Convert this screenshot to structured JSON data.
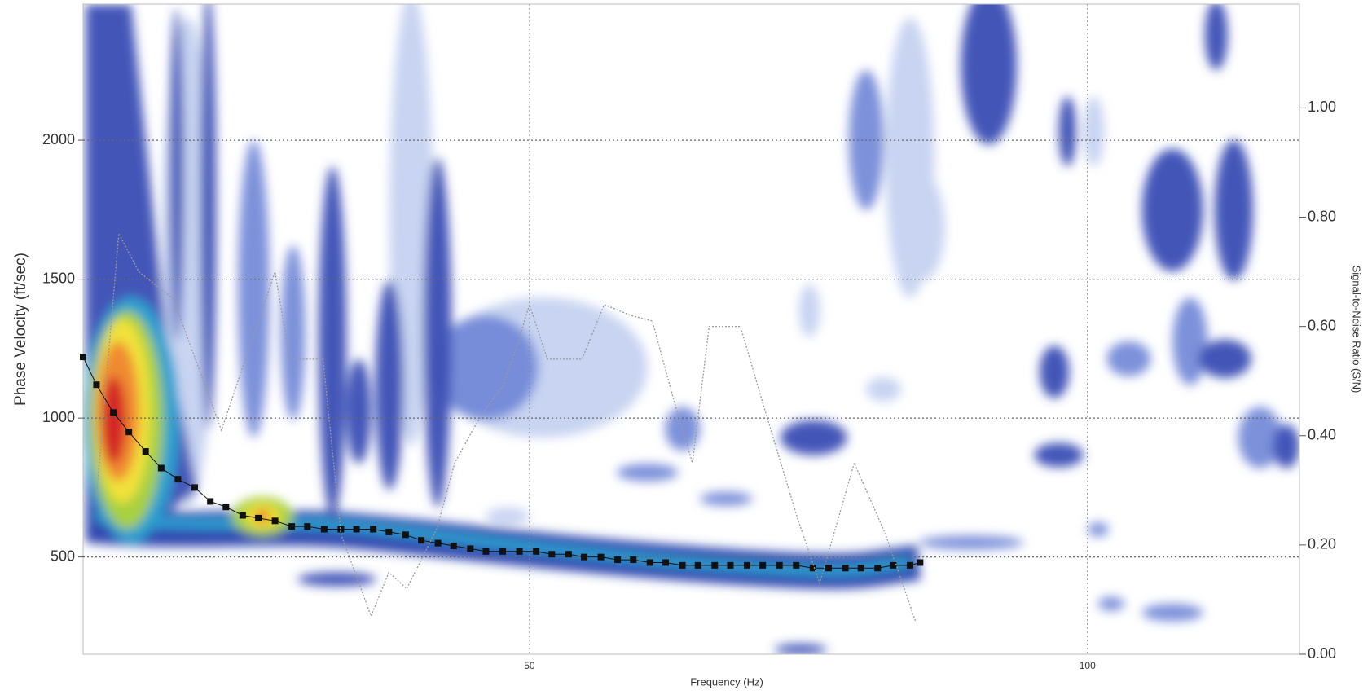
{
  "chart_data": {
    "type": "dispersion",
    "x_label": "Frequency (Hz)",
    "y_label": "Phase Velocity (ft/sec)",
    "y2_label": "Signal-to-Noise Ratio (S/N)",
    "xlim": [
      10,
      119
    ],
    "xticks": [
      50,
      100
    ],
    "ylim": [
      150,
      2490
    ],
    "yticks": [
      500,
      1000,
      1500,
      2000
    ],
    "y2lim": [
      0,
      1.19
    ],
    "y2ticks": [
      {
        "value": 0,
        "label": "0.00"
      },
      {
        "value": 0.2,
        "label": "0.20"
      },
      {
        "value": 0.4,
        "label": "0.40"
      },
      {
        "value": 0.6,
        "label": "0.60"
      },
      {
        "value": 0.8,
        "label": "0.80"
      },
      {
        "value": 1,
        "label": "1.00"
      }
    ],
    "grid": true,
    "series": [
      {
        "color": "#111111",
        "marker": "square",
        "x": [
          10.0,
          11.2,
          12.7,
          14.1,
          15.6,
          17.0,
          18.5,
          20.0,
          21.4,
          22.8,
          24.3,
          25.7,
          27.2,
          28.7,
          30.1,
          31.6,
          33.1,
          34.5,
          36.0,
          37.4,
          38.9,
          40.3,
          41.8,
          43.2,
          44.7,
          46.1,
          47.6,
          49.1,
          50.6,
          52.0,
          53.5,
          54.9,
          56.4,
          57.9,
          59.3,
          60.8,
          62.2,
          63.7,
          65.1,
          66.6,
          68.0,
          69.5,
          70.9,
          72.4,
          73.9,
          75.4,
          76.8,
          78.3,
          79.7,
          81.2,
          82.6,
          84.1,
          85.0
        ],
        "values": [
          1220,
          1120,
          1020,
          950,
          880,
          820,
          780,
          750,
          700,
          680,
          650,
          640,
          630,
          610,
          610,
          600,
          600,
          600,
          600,
          590,
          580,
          560,
          550,
          540,
          530,
          520,
          520,
          520,
          520,
          510,
          510,
          500,
          500,
          490,
          490,
          480,
          480,
          470,
          470,
          470,
          470,
          470,
          470,
          470,
          470,
          460,
          460,
          460,
          460,
          460,
          470,
          470,
          480
        ]
      },
      {
        "color": "#9a9a9a",
        "axis": "y2",
        "line_style": "dotted",
        "x": [
          11.2,
          13.2,
          15.0,
          18.1,
          22.4,
          27.2,
          28.5,
          31.5,
          33.1,
          35.8,
          37.4,
          39.0,
          41.7,
          43.3,
          44.9,
          46.1,
          47.6,
          48.8,
          50.0,
          51.6,
          54.7,
          56.7,
          59.1,
          61.0,
          63.0,
          64.6,
          66.1,
          68.9,
          70.9,
          74.0,
          76.0,
          79.1,
          81.9,
          84.6
        ],
        "values": [
          0.29,
          0.77,
          0.7,
          0.65,
          0.41,
          0.7,
          0.54,
          0.54,
          0.22,
          0.07,
          0.15,
          0.12,
          0.23,
          0.35,
          0.41,
          0.45,
          0.49,
          0.56,
          0.64,
          0.54,
          0.54,
          0.64,
          0.62,
          0.61,
          0.46,
          0.35,
          0.6,
          0.6,
          0.46,
          0.25,
          0.13,
          0.35,
          0.22,
          0.06
        ]
      }
    ]
  }
}
